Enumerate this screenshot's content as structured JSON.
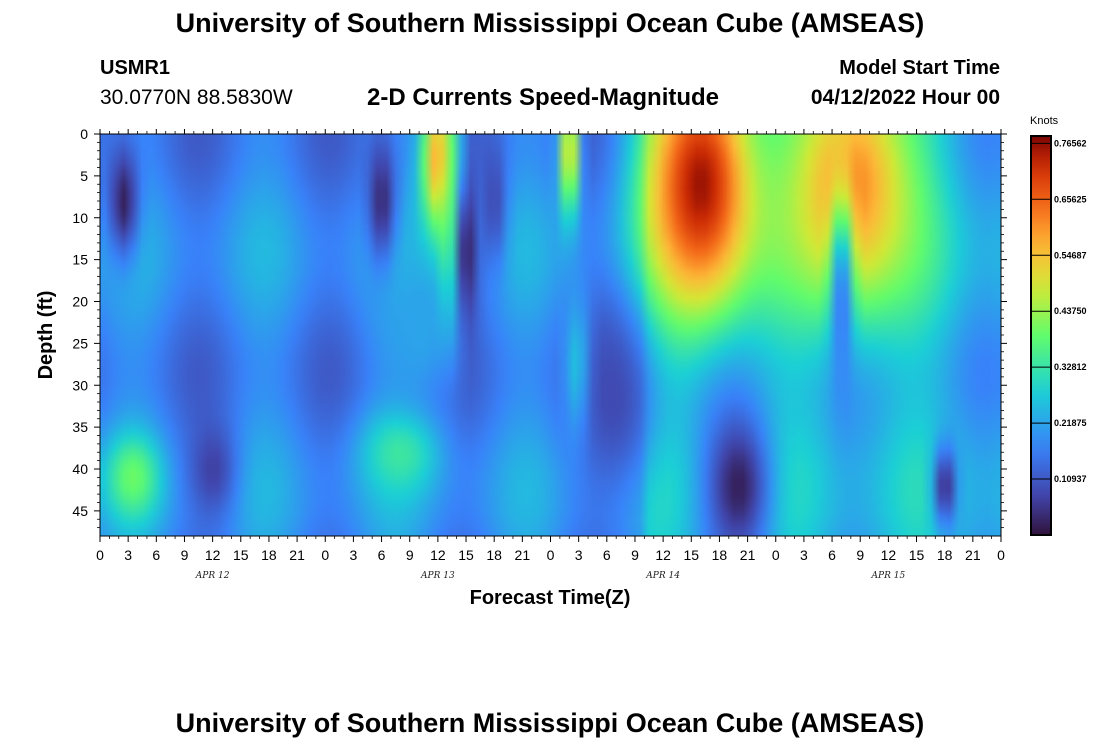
{
  "header": {
    "title": "University of Southern Mississippi Ocean Cube (AMSEAS)",
    "station": "USMR1",
    "coords": "30.0770N  88.5830W",
    "subtitle": "2-D Currents Speed-Magnitude",
    "start_label": "Model Start Time",
    "start_value": "04/12/2022 Hour 00"
  },
  "footer": {
    "title": "University of Southern Mississippi Ocean Cube (AMSEAS)"
  },
  "chart_data": {
    "type": "heatmap",
    "title": "2-D Currents Speed-Magnitude",
    "xlabel": "Forecast Time(Z)",
    "ylabel": "Depth (ft)",
    "x_ticks": [
      "0",
      "3",
      "6",
      "9",
      "12",
      "15",
      "18",
      "21",
      "0",
      "3",
      "6",
      "9",
      "12",
      "15",
      "18",
      "21",
      "0",
      "3",
      "6",
      "9",
      "12",
      "15",
      "18",
      "21",
      "0",
      "3",
      "6",
      "9",
      "12",
      "15",
      "18",
      "21",
      "0"
    ],
    "x_range_hours": [
      0,
      96
    ],
    "date_labels": [
      {
        "label": "APR 12",
        "hour": 12
      },
      {
        "label": "APR 13",
        "hour": 36
      },
      {
        "label": "APR 14",
        "hour": 60
      },
      {
        "label": "APR 15",
        "hour": 84
      }
    ],
    "y_ticks": [
      0,
      5,
      10,
      15,
      20,
      25,
      30,
      35,
      40,
      45
    ],
    "y_range_ft": [
      0,
      48
    ],
    "colorbar": {
      "units": "Knots",
      "min": 0.0,
      "max": 0.78,
      "tick_values": [
        0.10937,
        0.21875,
        0.32812,
        0.4375,
        0.54687,
        0.65625,
        0.76562
      ],
      "tick_labels": [
        "0.10937",
        "0.21875",
        "0.32812",
        "0.43750",
        "0.54687",
        "0.65625",
        "0.76562"
      ]
    },
    "features": [
      {
        "hour": 2.5,
        "depth": 8,
        "speed": 0.02,
        "w_h": 1.6,
        "w_d": 7
      },
      {
        "hour": 3.5,
        "depth": 41,
        "speed": 0.4,
        "w_h": 2.8,
        "w_d": 5
      },
      {
        "hour": 12,
        "depth": 40,
        "speed": 0.07,
        "w_h": 2.5,
        "w_d": 6
      },
      {
        "hour": 30,
        "depth": 8,
        "speed": 0.03,
        "w_h": 1.5,
        "w_d": 8
      },
      {
        "hour": 32,
        "depth": 38,
        "speed": 0.34,
        "w_h": 4,
        "w_d": 5
      },
      {
        "hour": 34,
        "depth": 24,
        "speed": 0.22,
        "w_h": 4,
        "w_d": 8
      },
      {
        "hour": 36,
        "depth": 3,
        "speed": 0.6,
        "w_h": 1.8,
        "w_d": 9
      },
      {
        "hour": 37.5,
        "depth": 10,
        "speed": 0.45,
        "w_h": 1.2,
        "w_d": 12
      },
      {
        "hour": 39,
        "depth": 14,
        "speed": 0.02,
        "w_h": 1.3,
        "w_d": 10
      },
      {
        "hour": 42,
        "depth": 8,
        "speed": 0.08,
        "w_h": 1.2,
        "w_d": 8
      },
      {
        "hour": 50,
        "depth": 2,
        "speed": 0.55,
        "w_h": 1,
        "w_d": 8
      },
      {
        "hour": 51,
        "depth": 28,
        "speed": 0.35,
        "w_h": 1.4,
        "w_d": 8
      },
      {
        "hour": 55,
        "depth": 30,
        "speed": 0.08,
        "w_h": 4,
        "w_d": 12
      },
      {
        "hour": 64,
        "depth": 6,
        "speed": 0.76,
        "w_h": 6,
        "w_d": 16
      },
      {
        "hour": 68,
        "depth": 42,
        "speed": 0.02,
        "w_h": 3.5,
        "w_d": 9
      },
      {
        "hour": 80,
        "depth": 6,
        "speed": 0.62,
        "w_h": 7,
        "w_d": 16
      },
      {
        "hour": 79,
        "depth": 20,
        "speed": 0.14,
        "w_h": 1.2,
        "w_d": 12
      },
      {
        "hour": 90,
        "depth": 42,
        "speed": 0.03,
        "w_h": 1.2,
        "w_d": 5
      }
    ]
  }
}
